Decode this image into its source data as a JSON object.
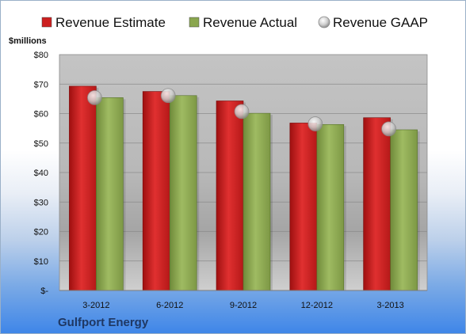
{
  "chart_data": {
    "type": "bar",
    "unit_label": "$millions",
    "company": "Gulfport Energy",
    "categories": [
      "3-2012",
      "6-2012",
      "9-2012",
      "12-2012",
      "3-2013"
    ],
    "series": [
      {
        "name": "Revenue Estimate",
        "kind": "bar",
        "color": "#cc1f1f",
        "values": [
          69.3,
          67.5,
          64.3,
          56.8,
          58.6
        ]
      },
      {
        "name": "Revenue Actual",
        "kind": "bar",
        "color": "#8aa64e",
        "values": [
          65.4,
          66.1,
          60.1,
          56.3,
          54.5
        ]
      },
      {
        "name": "Revenue GAAP",
        "kind": "marker",
        "color": "#bfbfbf",
        "values": [
          65.4,
          66.1,
          60.7,
          56.5,
          54.8
        ]
      }
    ],
    "ylim": [
      0,
      80
    ],
    "y_ticks": [
      {
        "value": 0,
        "label": "$-"
      },
      {
        "value": 10,
        "label": "$10"
      },
      {
        "value": 20,
        "label": "$20"
      },
      {
        "value": 30,
        "label": "$30"
      },
      {
        "value": 40,
        "label": "$40"
      },
      {
        "value": 50,
        "label": "$50"
      },
      {
        "value": 60,
        "label": "$60"
      },
      {
        "value": 70,
        "label": "$70"
      },
      {
        "value": 80,
        "label": "$80"
      }
    ],
    "grid": true,
    "legend_position": "top"
  }
}
